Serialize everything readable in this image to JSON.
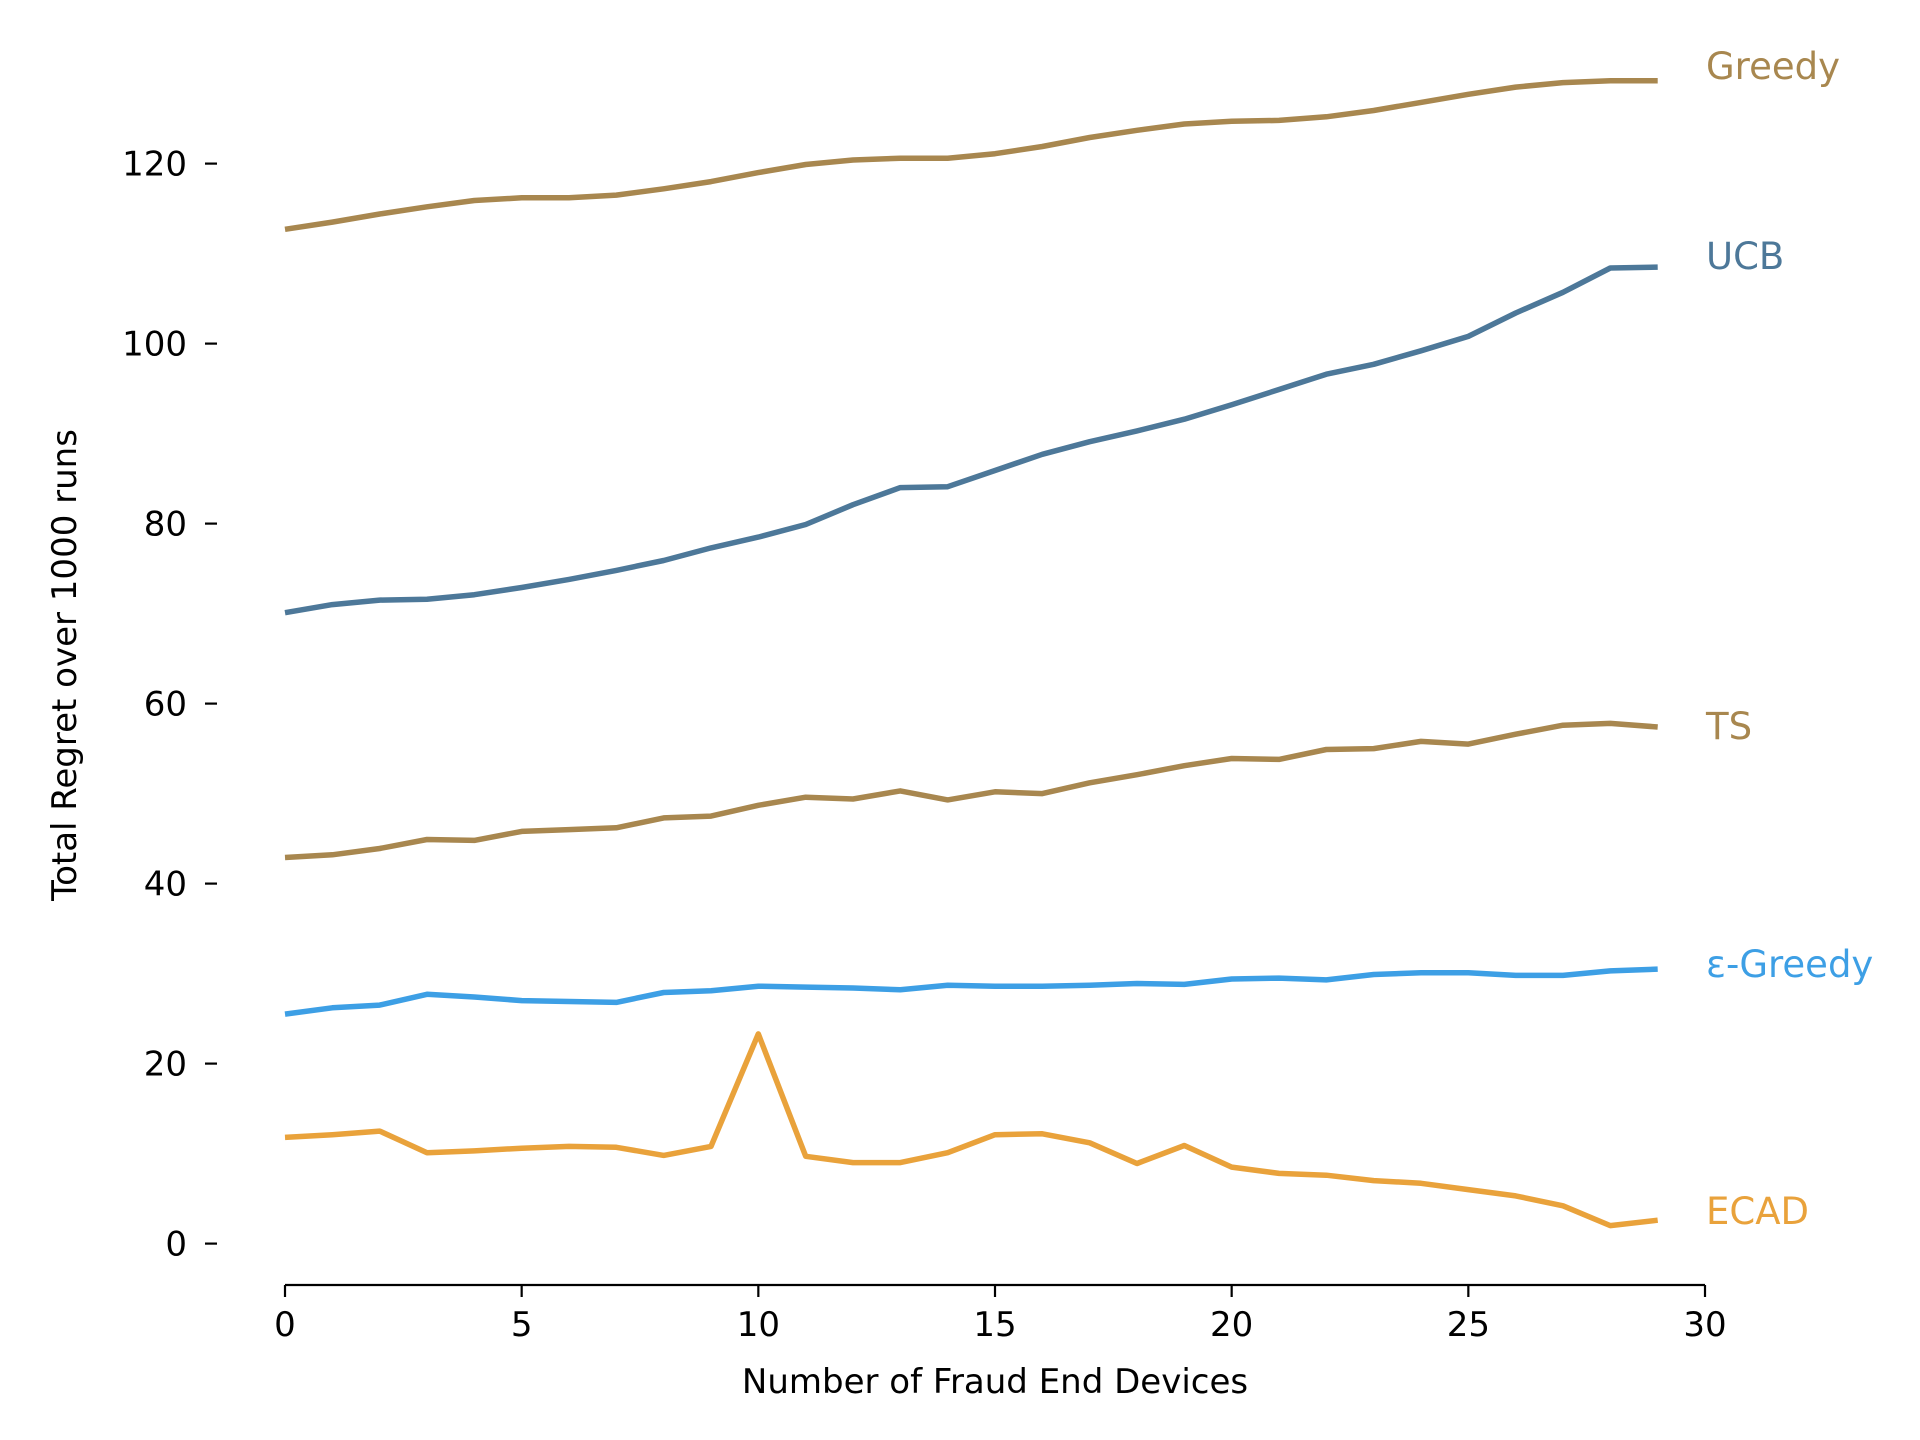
{
  "chart_data": {
    "type": "line",
    "title": "",
    "xlabel": "Number of Fraud End Devices",
    "ylabel": "Total Regret over 1000 runs",
    "xlim": [
      0,
      30
    ],
    "ylim": [
      -4.6,
      135.4
    ],
    "xticks": [
      0,
      5,
      10,
      15,
      20,
      25,
      30
    ],
    "yticks": [
      0,
      20,
      40,
      60,
      80,
      100,
      120
    ],
    "grid": false,
    "legend": "inline labels at right end of each line",
    "x": [
      0,
      1,
      2,
      3,
      4,
      5,
      6,
      7,
      8,
      9,
      10,
      11,
      12,
      13,
      14,
      15,
      16,
      17,
      18,
      19,
      20,
      21,
      22,
      23,
      24,
      25,
      26,
      27,
      28,
      29
    ],
    "series": [
      {
        "name": "Greedy",
        "color": "#A8874F",
        "values": [
          112.7,
          113.5,
          114.4,
          115.2,
          115.9,
          116.2,
          116.2,
          116.5,
          117.2,
          118.0,
          119.0,
          119.9,
          120.4,
          120.6,
          120.6,
          121.1,
          121.9,
          122.9,
          123.7,
          124.4,
          124.7,
          124.8,
          125.2,
          125.9,
          126.8,
          127.7,
          128.5,
          129.0,
          129.2,
          129.2
        ]
      },
      {
        "name": "UCB",
        "color": "#4D7899",
        "values": [
          70.1,
          71.0,
          71.5,
          71.6,
          72.1,
          72.9,
          73.8,
          74.8,
          75.9,
          77.3,
          78.5,
          79.9,
          82.1,
          84.0,
          84.1,
          85.9,
          87.7,
          89.1,
          90.3,
          91.6,
          93.2,
          94.9,
          96.6,
          97.7,
          99.2,
          100.8,
          103.4,
          105.7,
          108.4,
          108.5
        ]
      },
      {
        "name": "TS",
        "color": "#A8874F",
        "values": [
          42.9,
          43.2,
          43.9,
          44.9,
          44.8,
          45.8,
          46.0,
          46.2,
          47.3,
          47.5,
          48.7,
          49.6,
          49.4,
          50.3,
          49.3,
          50.2,
          50.0,
          51.2,
          52.1,
          53.1,
          53.9,
          53.8,
          54.9,
          55.0,
          55.8,
          55.5,
          56.6,
          57.6,
          57.8,
          57.4
        ]
      },
      {
        "name": "ε-Greedy",
        "color": "#3D9FE5",
        "values": [
          25.5,
          26.2,
          26.5,
          27.7,
          27.4,
          27.0,
          26.9,
          26.8,
          27.9,
          28.1,
          28.6,
          28.5,
          28.4,
          28.2,
          28.7,
          28.6,
          28.6,
          28.7,
          28.9,
          28.8,
          29.4,
          29.5,
          29.3,
          29.9,
          30.1,
          30.1,
          29.8,
          29.8,
          30.3,
          30.5
        ]
      },
      {
        "name": "ECAD",
        "color": "#E9A23B",
        "values": [
          11.8,
          12.1,
          12.5,
          10.1,
          10.3,
          10.6,
          10.8,
          10.7,
          9.8,
          10.8,
          23.3,
          9.7,
          9.0,
          9.0,
          10.1,
          12.1,
          12.2,
          11.2,
          8.9,
          10.9,
          8.5,
          7.8,
          7.6,
          7.0,
          6.7,
          6.0,
          5.3,
          4.2,
          2.0,
          2.6
        ]
      }
    ]
  }
}
